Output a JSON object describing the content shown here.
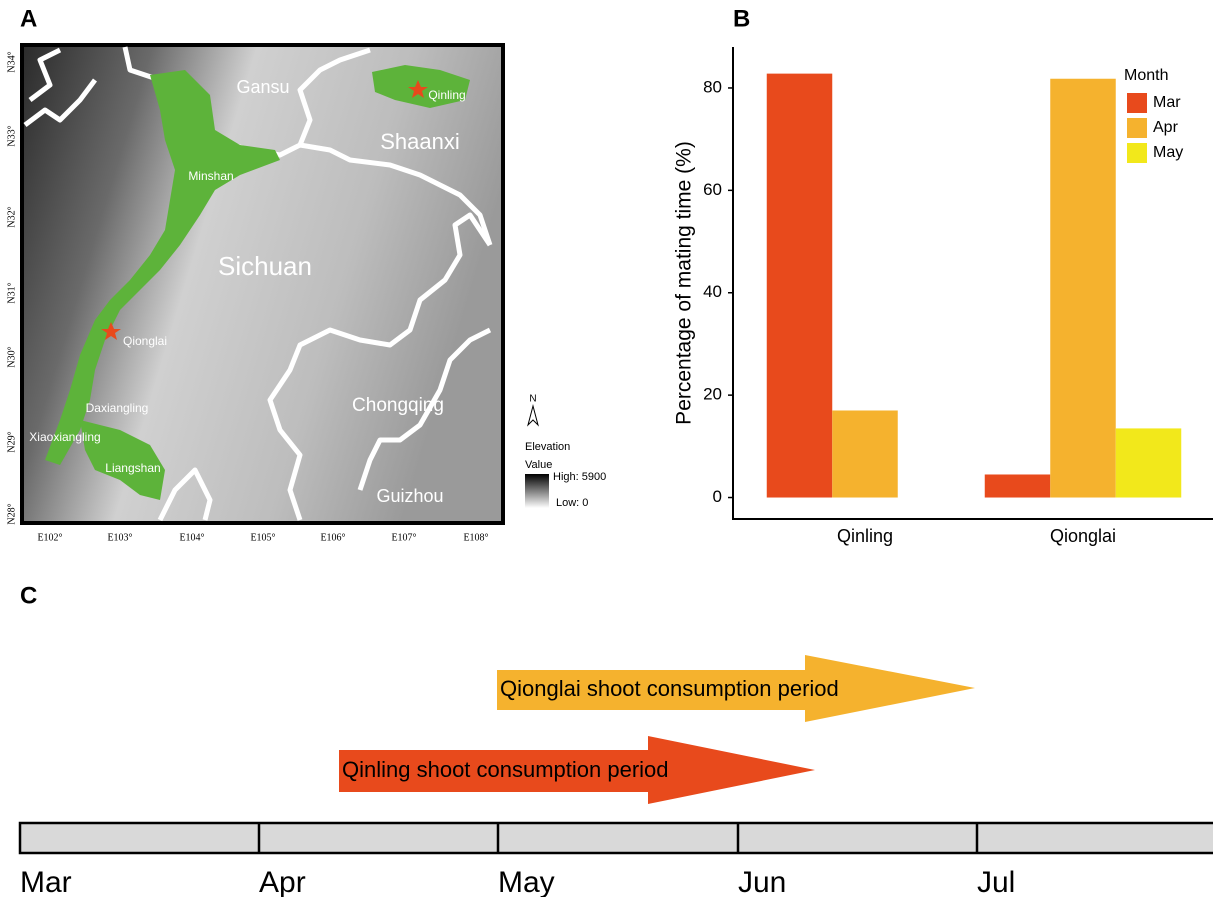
{
  "chart_data": {
    "type": "bar",
    "panel_label": "B",
    "y_label": "Percentage of mating time (%)",
    "legend_title": "Month",
    "categories": [
      "Qinling",
      "Qionglai"
    ],
    "series": [
      {
        "name": "Mar",
        "color": "#e84a1c",
        "values": [
          82.8,
          4.5
        ]
      },
      {
        "name": "Apr",
        "color": "#f5b22e",
        "values": [
          17.0,
          81.8
        ]
      },
      {
        "name": "May",
        "color": "#f2e81b",
        "values": [
          0,
          13.5
        ]
      }
    ],
    "ylim": [
      -4,
      88
    ],
    "yticks": [
      0,
      20,
      40,
      60,
      80
    ],
    "grid": false,
    "legend": "top-right"
  },
  "map": {
    "panel_label": "A",
    "provinces": [
      "Gansu",
      "Shaanxi",
      "Sichuan",
      "Chongqing",
      "Guizhou"
    ],
    "mountains": [
      "Qinling",
      "Minshan",
      "Qionglai",
      "Daxiangling",
      "Xiaoxiangling",
      "Liangshan"
    ],
    "lat_ticks": [
      "N34°",
      "N33°",
      "N32°",
      "N31°",
      "N30°",
      "N29°",
      "N28°"
    ],
    "lon_ticks": [
      "E102°",
      "E103°",
      "E104°",
      "E105°",
      "E106°",
      "E107°",
      "E108°"
    ],
    "north": "N",
    "legend_title": "Elevation",
    "legend_subtitle": "Value",
    "high": "High:  5900",
    "low": "Low: 0"
  },
  "timeline": {
    "panel_label": "C",
    "periods": [
      "Qionglai shoot consumption period",
      "Qinling shoot consumption period"
    ],
    "months": [
      "Mar",
      "Apr",
      "May",
      "Jun",
      "Jul"
    ]
  }
}
